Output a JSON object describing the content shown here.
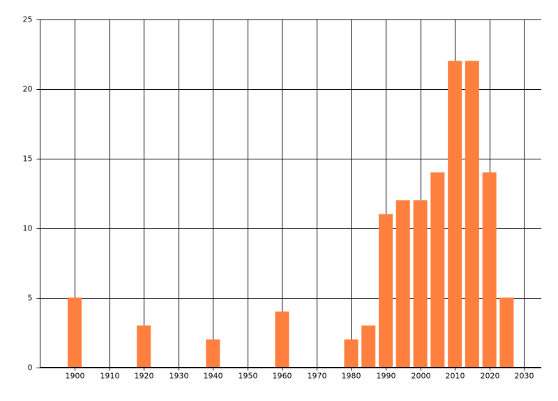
{
  "chart_data": {
    "type": "bar",
    "x": [
      1900,
      1920,
      1940,
      1960,
      1980,
      1985,
      1990,
      1995,
      2000,
      2005,
      2010,
      2015,
      2020,
      2025
    ],
    "values": [
      5,
      3,
      2,
      4,
      2,
      3,
      11,
      12,
      12,
      14,
      22,
      22,
      14,
      5
    ],
    "color": "#ff7f3f",
    "xlim": [
      1890,
      2035
    ],
    "xticks": [
      1900,
      1910,
      1920,
      1930,
      1940,
      1950,
      1960,
      1970,
      1980,
      1990,
      2000,
      2010,
      2020,
      2030
    ],
    "ylim": [
      0,
      25
    ],
    "yticks": [
      0,
      5,
      10,
      15,
      20,
      25
    ],
    "grid": true
  }
}
